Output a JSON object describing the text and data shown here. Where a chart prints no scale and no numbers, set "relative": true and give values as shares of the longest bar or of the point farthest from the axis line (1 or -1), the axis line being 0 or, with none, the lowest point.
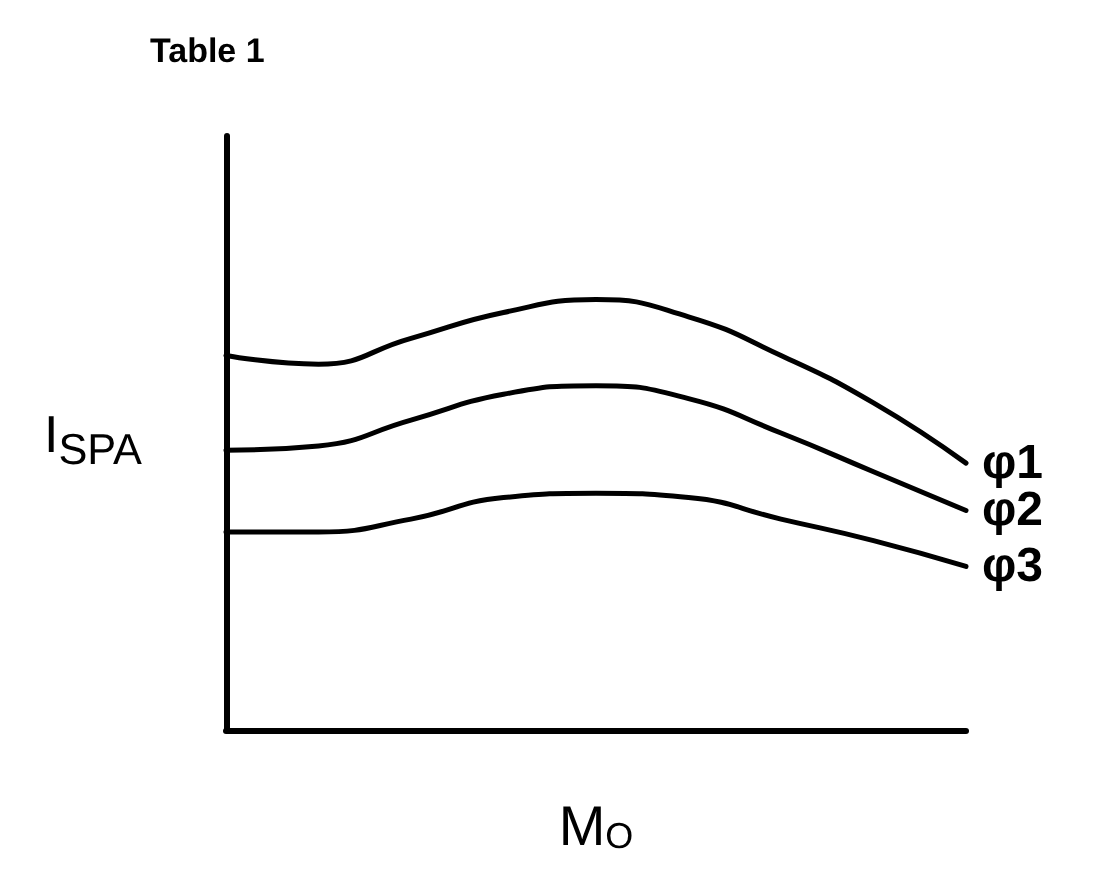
{
  "chart_data": {
    "type": "line",
    "title": "Table 1",
    "xlabel": "M$_{O}$",
    "ylabel": "I$_{SPA}$",
    "relative": true,
    "legend": false,
    "grid": false,
    "marker": "none",
    "line_style": "solid",
    "categories": [
      null,
      null,
      null,
      null,
      null,
      null,
      null,
      null,
      null
    ],
    "series": [
      {
        "name": "φ1",
        "color": "#000000",
        "values": [
          0.87,
          0.85,
          0.91,
          0.97,
          1.0,
          0.96,
          0.87,
          0.76,
          0.62
        ]
      },
      {
        "name": "φ2",
        "color": "#000000",
        "values": [
          0.65,
          0.66,
          0.72,
          0.78,
          0.8,
          0.77,
          0.69,
          0.6,
          0.51
        ]
      },
      {
        "name": "φ3",
        "color": "#000000",
        "values": [
          0.46,
          0.46,
          0.49,
          0.54,
          0.55,
          0.54,
          0.49,
          0.44,
          0.38
        ]
      }
    ]
  }
}
